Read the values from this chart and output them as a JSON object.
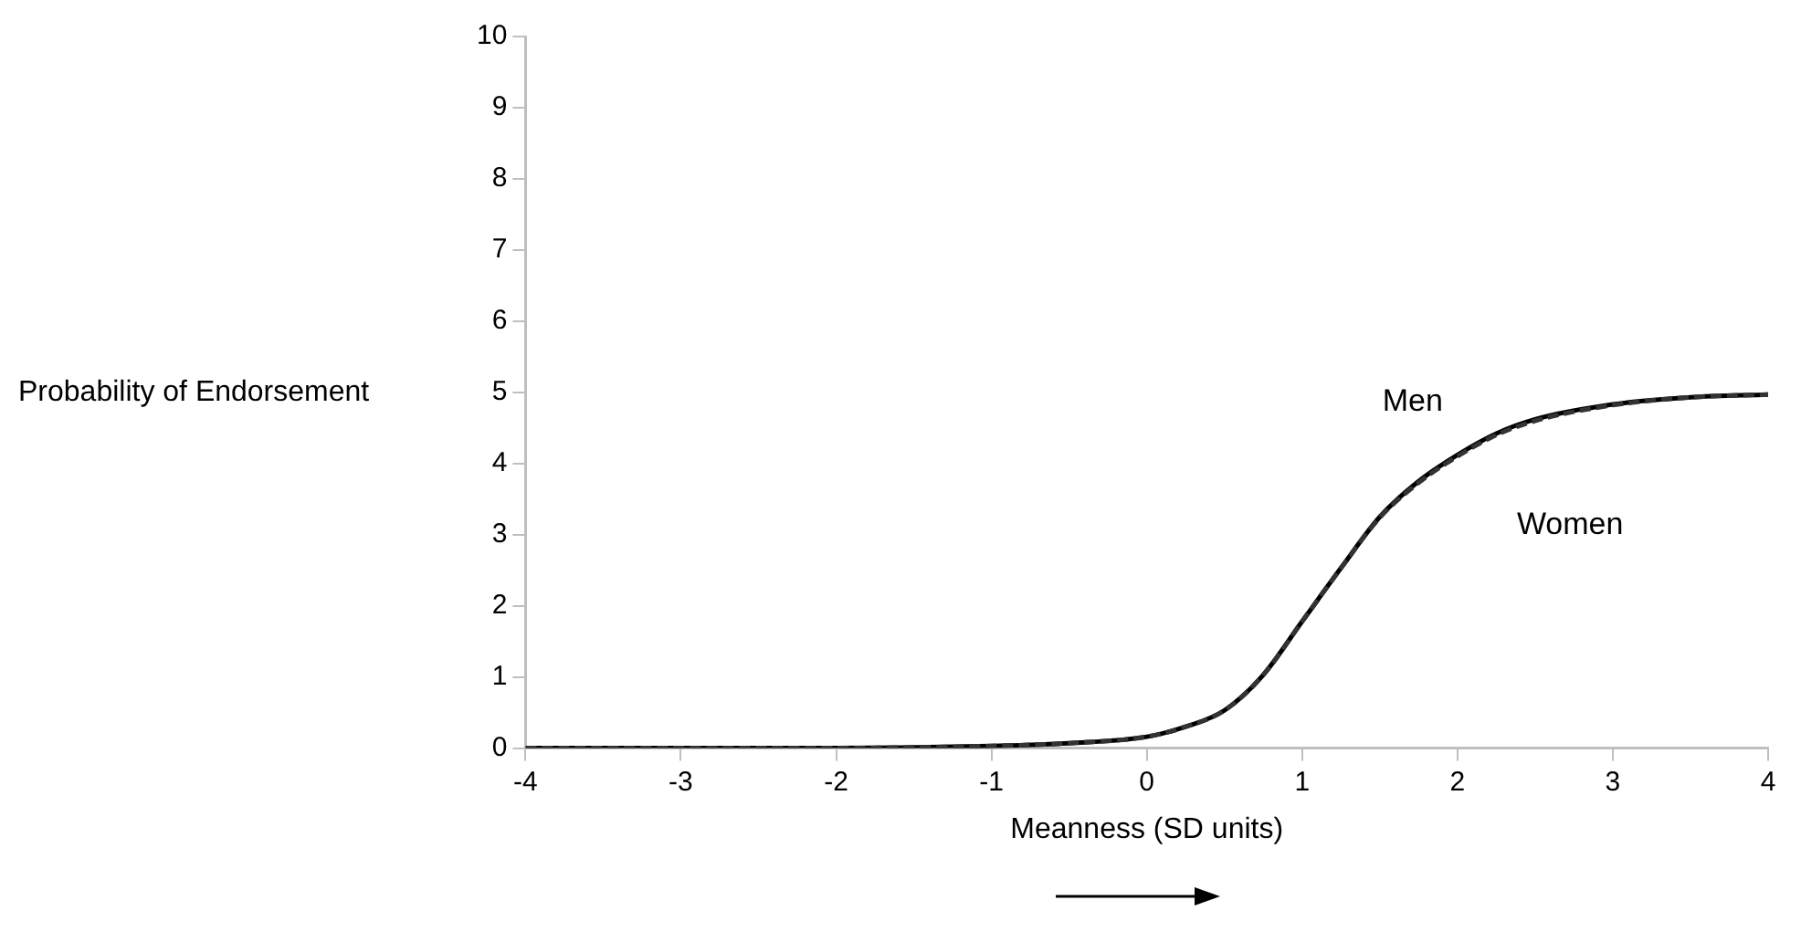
{
  "chart_data": {
    "type": "line",
    "xlabel": "Meanness (SD units)",
    "ylabel": "Probability of Endorsement",
    "x": [
      -4,
      -3,
      -2,
      -1.5,
      -1,
      -0.5,
      0,
      0.25,
      0.5,
      0.75,
      1,
      1.25,
      1.5,
      1.75,
      2,
      2.25,
      2.5,
      3,
      3.5,
      4
    ],
    "xlim": [
      -4,
      4
    ],
    "xticks": [
      -4,
      -3,
      -2,
      -1,
      0,
      1,
      2,
      3,
      4
    ],
    "ylim": [
      0,
      10
    ],
    "yticks": [
      0,
      1,
      2,
      3,
      4,
      5,
      6,
      7,
      8,
      9,
      10
    ],
    "grid": false,
    "legend": false,
    "marker": "none",
    "series": [
      {
        "name": "Men",
        "color": "#000000",
        "line_style": "solid",
        "values": [
          0,
          0,
          0,
          0.01,
          0.03,
          0.07,
          0.16,
          0.3,
          0.53,
          1.03,
          1.78,
          2.53,
          3.25,
          3.75,
          4.12,
          4.42,
          4.62,
          4.83,
          4.93,
          4.97
        ]
      },
      {
        "name": "Women",
        "color": "#333333",
        "line_style": "dashed",
        "values": [
          0,
          0,
          0,
          0.01,
          0.03,
          0.07,
          0.16,
          0.3,
          0.53,
          1.03,
          1.78,
          2.53,
          3.24,
          3.73,
          4.1,
          4.4,
          4.6,
          4.82,
          4.93,
          4.97
        ]
      }
    ]
  }
}
